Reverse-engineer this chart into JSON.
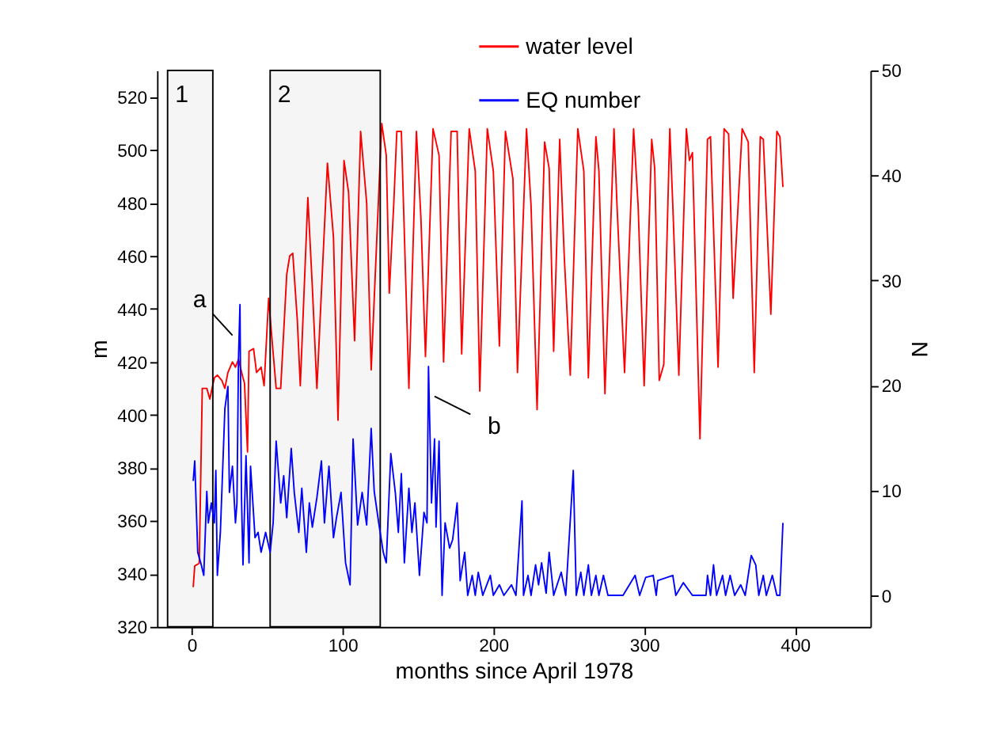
{
  "chart_data": {
    "type": "line",
    "xlabel": "months since April 1978",
    "ylabel": "m",
    "y2label": "N",
    "xlim": [
      -23,
      450
    ],
    "xticks": [
      0,
      100,
      200,
      300,
      400
    ],
    "ylim": [
      320,
      530
    ],
    "yticks": [
      320,
      340,
      360,
      380,
      400,
      420,
      440,
      460,
      480,
      500,
      520
    ],
    "y2lim": [
      -3,
      50
    ],
    "y2ticks": [
      0,
      10,
      20,
      30,
      40,
      50
    ],
    "grid": false,
    "legend": "top",
    "marker": "none",
    "line_style": "solid",
    "series": [
      {
        "name": "water level",
        "color": "#ff0000",
        "x": [
          1,
          2,
          5,
          7,
          10,
          12,
          15,
          17,
          20,
          22,
          24,
          27,
          29,
          31,
          34,
          35,
          37,
          38,
          41,
          43,
          46,
          48,
          51,
          53,
          56,
          59,
          63,
          65,
          67,
          70,
          72,
          77,
          80,
          83,
          90,
          94,
          97,
          101,
          104,
          108,
          112,
          116,
          119,
          126,
          129,
          131,
          134,
          136,
          139,
          144,
          149,
          152,
          155,
          160,
          164,
          167,
          172,
          176,
          179,
          184,
          188,
          191,
          196,
          200,
          204,
          208,
          213,
          216,
          222,
          225,
          229,
          234,
          237,
          240,
          244,
          247,
          251,
          256,
          260,
          263,
          268,
          270,
          274,
          280,
          282,
          287,
          293,
          296,
          300,
          305,
          307,
          310,
          313,
          317,
          319,
          323,
          328,
          330,
          332,
          337,
          342,
          344,
          349,
          353,
          356,
          359,
          365,
          369,
          373,
          377,
          379,
          384,
          388,
          390,
          392
        ],
        "values": [
          335,
          343,
          344,
          410,
          410,
          406,
          414,
          415,
          413,
          410,
          416,
          420,
          418,
          421,
          414,
          412,
          386,
          424,
          425,
          416,
          418,
          411,
          444,
          430,
          410,
          410,
          453,
          460,
          461,
          436,
          411,
          482,
          448,
          410,
          495,
          467,
          398,
          496,
          484,
          428,
          507,
          480,
          417,
          510,
          498,
          446,
          480,
          507,
          507,
          410,
          507,
          474,
          422,
          508,
          498,
          420,
          507,
          507,
          423,
          508,
          492,
          409,
          508,
          492,
          426,
          507,
          489,
          416,
          508,
          479,
          402,
          503,
          493,
          424,
          504,
          460,
          415,
          508,
          492,
          414,
          505,
          492,
          408,
          508,
          479,
          416,
          508,
          479,
          411,
          504,
          493,
          413,
          419,
          508,
          479,
          415,
          508,
          496,
          499,
          391,
          504,
          505,
          418,
          508,
          506,
          444,
          508,
          503,
          416,
          505,
          504,
          438,
          507,
          505,
          486
        ]
      },
      {
        "name": "EQ number",
        "color": "#0000ff",
        "axis": "y2",
        "x": [
          1,
          2,
          4,
          6,
          8,
          10,
          11,
          13,
          15,
          16,
          17,
          19,
          22,
          24,
          25,
          27,
          29,
          30,
          31,
          32,
          33,
          34,
          36,
          38,
          39,
          42,
          44,
          46,
          49,
          52,
          54,
          56,
          59,
          61,
          63,
          66,
          68,
          71,
          73,
          76,
          78,
          80,
          83,
          86,
          88,
          91,
          94,
          96,
          99,
          102,
          105,
          107,
          110,
          113,
          116,
          119,
          121,
          124,
          127,
          129,
          132,
          135,
          137,
          139,
          141,
          144,
          146,
          148,
          151,
          154,
          156,
          157,
          159,
          161,
          162,
          164,
          166,
          168,
          171,
          173,
          176,
          178,
          181,
          183,
          186,
          188,
          190,
          193,
          198,
          200,
          204,
          207,
          212,
          215,
          219,
          220,
          223,
          225,
          228,
          230,
          232,
          235,
          237,
          240,
          245,
          248,
          253,
          255,
          258,
          260,
          263,
          265,
          268,
          270,
          273,
          276,
          286,
          294,
          297,
          301,
          306,
          308,
          309,
          319,
          321,
          326,
          332,
          341,
          342,
          344,
          346,
          348,
          352,
          354,
          357,
          360,
          364,
          367,
          371,
          374,
          376,
          379,
          381,
          385,
          388,
          390,
          392
        ],
        "values": [
          10.9,
          12.8,
          4.1,
          3.1,
          1.9,
          9.9,
          6.9,
          8.8,
          6.9,
          11.9,
          1.9,
          6,
          17.8,
          19.9,
          9.8,
          12.3,
          6.9,
          8.8,
          22.5,
          27.7,
          9.3,
          2.9,
          13.3,
          3.1,
          12.3,
          5.5,
          6,
          4.1,
          6,
          4.1,
          6.9,
          14.7,
          8.8,
          11.4,
          7.4,
          14,
          9.8,
          6,
          10.2,
          4.1,
          8.8,
          6.5,
          9.3,
          12.8,
          6.9,
          12.3,
          5.5,
          7.4,
          9.8,
          3.1,
          1,
          14.9,
          6.7,
          9.8,
          6.7,
          15.9,
          9.9,
          6.9,
          4.1,
          3.1,
          13.5,
          9.8,
          6,
          11.6,
          3.1,
          10.2,
          6,
          8.8,
          1.9,
          7.9,
          6.9,
          21.8,
          8.8,
          14.9,
          6.5,
          14.7,
          0,
          6.9,
          4.5,
          5.3,
          8.8,
          1.4,
          4.1,
          0,
          1.9,
          0,
          2.2,
          0,
          1.9,
          0,
          1,
          0,
          1,
          0,
          9,
          0,
          1.9,
          0,
          2.9,
          1,
          3.1,
          0.2,
          4.1,
          0,
          2.2,
          0,
          11.9,
          0,
          2.2,
          0,
          2.9,
          0,
          1.9,
          0,
          1.9,
          0,
          0,
          1.9,
          0,
          1.7,
          1.9,
          0,
          1.4,
          1.9,
          0,
          1.2,
          0,
          0,
          1.9,
          0,
          2.9,
          0,
          1.9,
          0,
          1.9,
          0,
          1,
          0,
          3.8,
          2.9,
          0,
          1.9,
          0,
          1.9,
          0,
          0,
          6.9
        ]
      }
    ],
    "bands": [
      {
        "axis": "x",
        "from": -16,
        "to": 14,
        "label": "1"
      },
      {
        "axis": "x",
        "from": 52,
        "to": 125,
        "label": "2"
      }
    ],
    "annotations": [
      {
        "text": "a",
        "x": 27,
        "y": 430
      },
      {
        "text": "b",
        "x": 161,
        "y": 407
      }
    ]
  }
}
